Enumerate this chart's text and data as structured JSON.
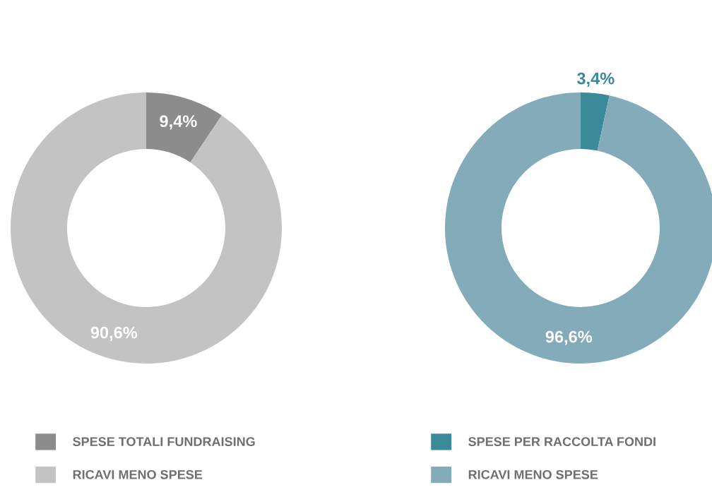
{
  "chart_data": [
    {
      "type": "donut",
      "categories": [
        "SPESE TOTALI FUNDRAISING",
        "RICAVI MENO SPESE"
      ],
      "values": [
        9.4,
        90.6
      ],
      "colors": [
        "#8c8c8c",
        "#c3c3c3"
      ],
      "value_labels": [
        "9,4%",
        "90,6%"
      ],
      "legend": "bottom"
    },
    {
      "type": "donut",
      "categories": [
        "SPESE PER RACCOLTA FONDI",
        "RICAVI MENO SPESE"
      ],
      "values": [
        3.4,
        96.6
      ],
      "colors": [
        "#3b8a99",
        "#84abb9"
      ],
      "value_labels": [
        "3,4%",
        "96,6%"
      ],
      "legend": "bottom"
    }
  ]
}
